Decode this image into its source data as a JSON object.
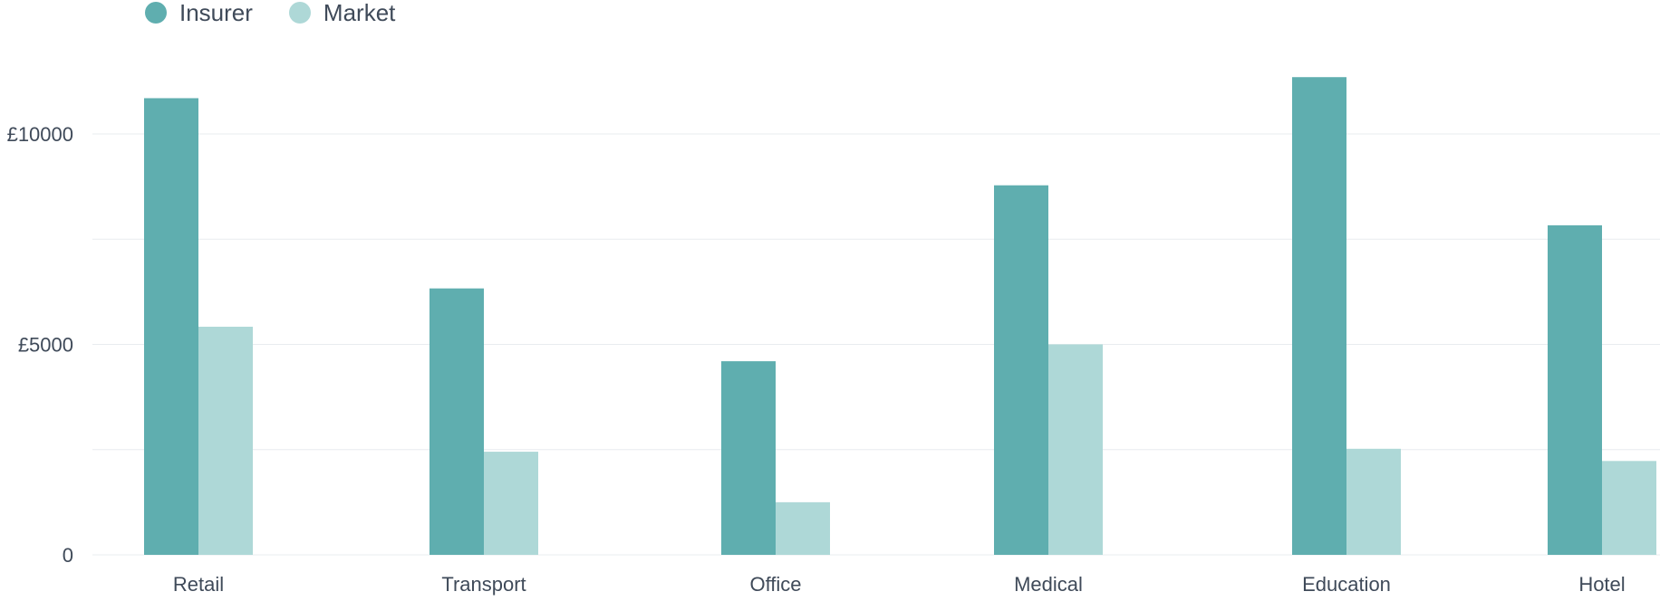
{
  "colors": {
    "insurer": "#5faeaf",
    "market": "#aed8d7",
    "grid": "#e8ecef",
    "text": "#3f4a59"
  },
  "legend": [
    {
      "label": "Insurer",
      "color": "#5faeaf"
    },
    {
      "label": "Market",
      "color": "#aed8d7"
    }
  ],
  "chart_data": {
    "type": "bar",
    "categories": [
      "Retail",
      "Transport",
      "Office",
      "Medical",
      "Education",
      "Hotel"
    ],
    "series": [
      {
        "name": "Insurer",
        "values": [
          10850,
          6330,
          4600,
          8780,
          11350,
          7830
        ]
      },
      {
        "name": "Market",
        "values": [
          5420,
          2450,
          1250,
          5000,
          2520,
          2230
        ]
      }
    ],
    "ytick_labels": [
      "0",
      "£5000",
      "£10000"
    ],
    "ytick_values": [
      0,
      5000,
      10000
    ],
    "grid_values": [
      0,
      2500,
      5000,
      7500,
      10000
    ],
    "ylim": [
      0,
      13000
    ],
    "grid": true,
    "legend_position": "top-left"
  }
}
